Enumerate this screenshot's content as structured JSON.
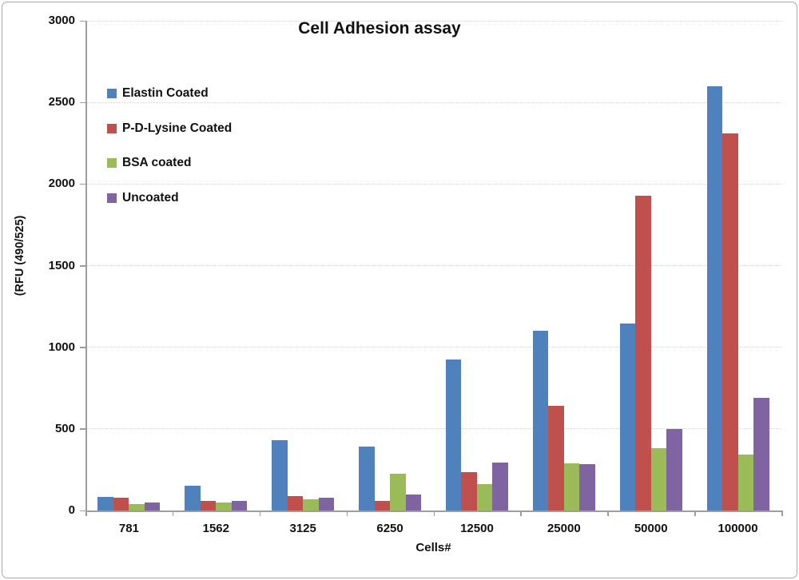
{
  "window": {
    "background_color": "#ffffff",
    "frame_border_color": "#a8a8a8"
  },
  "chart_data": {
    "type": "bar",
    "title": "Cell Adhesion assay",
    "xlabel": "Cells#",
    "ylabel": "(RFU (490/525)",
    "categories": [
      "781",
      "1562",
      "3125",
      "6250",
      "12500",
      "25000",
      "50000",
      "100000"
    ],
    "series": [
      {
        "name": "Elastin Coated",
        "color": "#4F81BD",
        "values": [
          85,
          150,
          430,
          390,
          925,
          1100,
          1145,
          2600
        ]
      },
      {
        "name": "P-D-Lysine Coated",
        "color": "#C0504D",
        "values": [
          80,
          60,
          90,
          60,
          235,
          640,
          1930,
          2310
        ]
      },
      {
        "name": "BSA coated",
        "color": "#9BBB59",
        "values": [
          40,
          50,
          70,
          225,
          160,
          290,
          380,
          345
        ]
      },
      {
        "name": "Uncoated",
        "color": "#8064A2",
        "values": [
          50,
          60,
          80,
          100,
          295,
          285,
          500,
          690
        ]
      }
    ],
    "ylim": [
      0,
      3000
    ],
    "ytick_step": 500,
    "ytick_labels": [
      "0",
      "500",
      "1000",
      "1500",
      "2000",
      "2500",
      "3000"
    ],
    "grid": "horizontal-dotted",
    "legend_position": "upper-left-vertical",
    "axis_color": "#9d9d9d",
    "gridline_color": "#d4d4d4",
    "text_color": "#111111"
  }
}
